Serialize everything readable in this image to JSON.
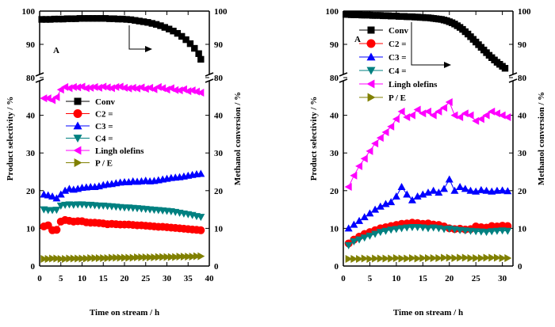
{
  "chart_data": [
    {
      "type": "scatter",
      "panel_label": "A",
      "xlabel": "Time on stream / h",
      "ylabel_left": "Product selectivity / %",
      "ylabel_right": "Methanol conversion / %",
      "xlim": [
        0,
        40
      ],
      "x_ticks": [
        "0",
        "5",
        "10",
        "15",
        "20",
        "25",
        "30",
        "35",
        "40"
      ],
      "y_lower_lim": [
        0,
        50
      ],
      "y_lower_ticks": [
        "0",
        "10",
        "20",
        "30",
        "40"
      ],
      "y_upper_lim": [
        80,
        100
      ],
      "y_upper_ticks": [
        "80",
        "90",
        "100"
      ],
      "axis_break": "between 45 and 80",
      "legend_position": "center-left",
      "conversion_series": {
        "name": "Conv",
        "x": [
          0.5,
          1.5,
          2.5,
          3.5,
          4.5,
          5.5,
          6.5,
          7.5,
          8.5,
          9.5,
          10.5,
          11.5,
          12.5,
          13.5,
          14.5,
          15.5,
          16.5,
          17.5,
          18.5,
          19.5,
          20.5,
          21.5,
          22.5,
          23.5,
          24.5,
          25.5,
          26.5,
          27.5,
          28.5,
          29.5,
          30.5,
          31.5,
          32.5,
          33.5,
          34.5,
          35.5,
          36.5,
          37.5,
          38.0
        ],
        "values": [
          97.5,
          97.5,
          97.5,
          97.6,
          97.6,
          97.6,
          97.7,
          97.7,
          97.7,
          97.8,
          97.8,
          97.8,
          97.8,
          97.8,
          97.8,
          97.8,
          97.7,
          97.7,
          97.6,
          97.6,
          97.5,
          97.4,
          97.2,
          97.0,
          96.8,
          96.6,
          96.3,
          96.0,
          95.6,
          95.1,
          94.6,
          94.0,
          93.3,
          92.4,
          91.4,
          90.2,
          88.8,
          87.2,
          85.5
        ]
      },
      "series": [
        {
          "name": "C2 =",
          "marker": "circle",
          "color": "#ff0000",
          "x": [
            1,
            2,
            3,
            4,
            5,
            6,
            7,
            8,
            9,
            10,
            11,
            12,
            13,
            14,
            15,
            16,
            17,
            18,
            19,
            20,
            21,
            22,
            23,
            24,
            25,
            26,
            27,
            28,
            29,
            30,
            31,
            32,
            33,
            34,
            35,
            36,
            37,
            38
          ],
          "values": [
            10.5,
            10.8,
            9.5,
            9.6,
            11.8,
            12.2,
            12.0,
            11.8,
            11.9,
            11.9,
            11.6,
            11.5,
            11.5,
            11.4,
            11.3,
            11.1,
            11.2,
            11.1,
            11.0,
            11.0,
            11.0,
            10.9,
            10.8,
            10.8,
            10.7,
            10.6,
            10.5,
            10.4,
            10.4,
            10.3,
            10.2,
            10.1,
            10.0,
            9.9,
            9.8,
            9.7,
            9.6,
            9.5
          ]
        },
        {
          "name": "C3 =",
          "marker": "triangle-up",
          "color": "#0000ff",
          "x": [
            1,
            2,
            3,
            4,
            5,
            6,
            7,
            8,
            9,
            10,
            11,
            12,
            13,
            14,
            15,
            16,
            17,
            18,
            19,
            20,
            21,
            22,
            23,
            24,
            25,
            26,
            27,
            28,
            29,
            30,
            31,
            32,
            33,
            34,
            35,
            36,
            37,
            38
          ],
          "values": [
            19.0,
            18.8,
            18.5,
            18.0,
            19.0,
            20.0,
            20.5,
            20.3,
            20.5,
            20.8,
            20.9,
            21.0,
            21.0,
            21.2,
            21.5,
            21.7,
            21.8,
            22.0,
            22.2,
            22.3,
            22.3,
            22.5,
            22.4,
            22.5,
            22.7,
            22.5,
            22.6,
            22.8,
            23.0,
            23.2,
            23.4,
            23.5,
            23.6,
            23.8,
            24.0,
            24.2,
            24.4,
            24.5
          ]
        },
        {
          "name": "C4 =",
          "marker": "triangle-down",
          "color": "#008080",
          "x": [
            1,
            2,
            3,
            4,
            5,
            6,
            7,
            8,
            9,
            10,
            11,
            12,
            13,
            14,
            15,
            16,
            17,
            18,
            19,
            20,
            21,
            22,
            23,
            24,
            25,
            26,
            27,
            28,
            29,
            30,
            31,
            32,
            33,
            34,
            35,
            36,
            37,
            38
          ],
          "values": [
            15.0,
            14.8,
            14.8,
            14.9,
            16.0,
            16.2,
            16.3,
            16.2,
            16.3,
            16.3,
            16.2,
            16.2,
            16.1,
            16.0,
            16.0,
            15.9,
            15.8,
            15.7,
            15.6,
            15.5,
            15.5,
            15.4,
            15.3,
            15.2,
            15.1,
            15.0,
            14.9,
            14.8,
            14.7,
            14.6,
            14.5,
            14.3,
            14.1,
            13.9,
            13.7,
            13.5,
            13.2,
            13.0
          ]
        },
        {
          "name": "Lingh olefins",
          "marker": "triangle-left",
          "color": "#ff00ff",
          "x": [
            1,
            2,
            3,
            4,
            5,
            6,
            7,
            8,
            9,
            10,
            11,
            12,
            13,
            14,
            15,
            16,
            17,
            18,
            19,
            20,
            21,
            22,
            23,
            24,
            25,
            26,
            27,
            28,
            29,
            30,
            31,
            32,
            33,
            34,
            35,
            36,
            37,
            38
          ],
          "values": [
            44.5,
            44.5,
            44.0,
            44.8,
            46.8,
            47.5,
            47.2,
            47.5,
            47.4,
            47.6,
            47.2,
            47.3,
            47.5,
            47.3,
            47.6,
            47.4,
            47.2,
            47.5,
            47.6,
            47.3,
            47.1,
            47.3,
            47.1,
            47.4,
            47.0,
            47.3,
            46.9,
            47.5,
            47.2,
            46.8,
            47.2,
            46.7,
            46.6,
            46.9,
            46.4,
            46.6,
            46.3,
            46.0
          ]
        },
        {
          "name": "P / E",
          "marker": "triangle-right",
          "color": "#808000",
          "x": [
            1,
            2,
            3,
            4,
            5,
            6,
            7,
            8,
            9,
            10,
            11,
            12,
            13,
            14,
            15,
            16,
            17,
            18,
            19,
            20,
            21,
            22,
            23,
            24,
            25,
            26,
            27,
            28,
            29,
            30,
            31,
            32,
            33,
            34,
            35,
            36,
            37,
            38
          ],
          "values": [
            1.9,
            1.9,
            2.0,
            2.0,
            1.9,
            1.9,
            2.0,
            2.0,
            2.0,
            2.0,
            2.0,
            2.1,
            2.1,
            2.1,
            2.1,
            2.1,
            2.2,
            2.2,
            2.2,
            2.2,
            2.2,
            2.2,
            2.3,
            2.3,
            2.3,
            2.3,
            2.3,
            2.4,
            2.4,
            2.4,
            2.4,
            2.4,
            2.5,
            2.5,
            2.5,
            2.5,
            2.6,
            2.6
          ]
        }
      ]
    },
    {
      "type": "scatter",
      "panel_label": "A",
      "xlabel": "Time on stream / h",
      "ylabel_left": "Product selectivity / %",
      "ylabel_right": "Methanol conversion / %",
      "xlim": [
        0,
        32
      ],
      "x_ticks": [
        "0",
        "5",
        "10",
        "15",
        "20",
        "25",
        "30"
      ],
      "y_lower_lim": [
        0,
        50
      ],
      "y_lower_ticks": [
        "0",
        "10",
        "20",
        "30",
        "40"
      ],
      "y_upper_lim": [
        80,
        100
      ],
      "y_upper_ticks": [
        "80",
        "90",
        "100"
      ],
      "axis_break": "between 45 and 80",
      "legend_position": "top-left",
      "conversion_series": {
        "name": "Conv",
        "x": [
          0.5,
          1,
          1.5,
          2,
          2.5,
          3,
          3.5,
          4,
          4.5,
          5,
          5.5,
          6,
          6.5,
          7,
          7.5,
          8,
          8.5,
          9,
          9.5,
          10,
          10.5,
          11,
          11.5,
          12,
          12.5,
          13,
          13.5,
          14,
          14.5,
          15,
          15.5,
          16,
          16.5,
          17,
          17.5,
          18,
          18.5,
          19,
          19.5,
          20,
          20.5,
          21,
          21.5,
          22,
          22.5,
          23,
          23.5,
          24,
          24.5,
          25,
          25.5,
          26,
          26.5,
          27,
          27.5,
          28,
          28.5,
          29,
          29.5,
          30,
          30.5
        ],
        "values": [
          99.0,
          99.0,
          98.9,
          98.9,
          98.9,
          98.9,
          98.8,
          98.8,
          98.8,
          98.8,
          98.7,
          98.7,
          98.7,
          98.7,
          98.6,
          98.6,
          98.6,
          98.5,
          98.5,
          98.5,
          98.4,
          98.4,
          98.4,
          98.3,
          98.3,
          98.3,
          98.2,
          98.2,
          98.1,
          98.1,
          98.0,
          98.0,
          97.9,
          97.8,
          97.7,
          97.6,
          97.5,
          97.3,
          97.1,
          96.8,
          96.5,
          96.1,
          95.6,
          95.1,
          94.5,
          93.8,
          93.1,
          92.3,
          91.5,
          90.7,
          89.9,
          89.1,
          88.3,
          87.5,
          86.7,
          86.0,
          85.3,
          84.6,
          84.0,
          83.4,
          82.8
        ]
      },
      "series": [
        {
          "name": "C2 =",
          "marker": "circle",
          "color": "#ff0000",
          "x": [
            1,
            2,
            3,
            4,
            5,
            6,
            7,
            8,
            9,
            10,
            11,
            12,
            13,
            14,
            15,
            16,
            17,
            18,
            19,
            20,
            21,
            22,
            23,
            24,
            25,
            26,
            27,
            28,
            29,
            30,
            31
          ],
          "values": [
            6.0,
            7.0,
            7.8,
            8.5,
            9.0,
            9.5,
            10.0,
            10.3,
            10.6,
            10.9,
            11.2,
            11.3,
            11.5,
            11.4,
            11.2,
            11.3,
            11.0,
            10.9,
            10.5,
            10.0,
            9.8,
            9.9,
            9.7,
            9.8,
            10.5,
            10.3,
            10.2,
            10.6,
            10.5,
            10.7,
            10.6
          ]
        },
        {
          "name": "C3 =",
          "marker": "triangle-up",
          "color": "#0000ff",
          "x": [
            1,
            2,
            3,
            4,
            5,
            6,
            7,
            8,
            9,
            10,
            11,
            12,
            13,
            14,
            15,
            16,
            17,
            18,
            19,
            20,
            21,
            22,
            23,
            24,
            25,
            26,
            27,
            28,
            29,
            30,
            31
          ],
          "values": [
            10.0,
            11.0,
            12.0,
            13.0,
            14.0,
            15.0,
            15.8,
            16.5,
            17.0,
            18.5,
            21.0,
            19.0,
            17.5,
            18.5,
            19.0,
            19.5,
            20.0,
            19.5,
            20.5,
            23.0,
            20.0,
            21.0,
            20.5,
            20.0,
            19.8,
            20.2,
            20.0,
            19.8,
            20.0,
            20.1,
            19.9
          ]
        },
        {
          "name": "C4 =",
          "marker": "triangle-down",
          "color": "#008080",
          "x": [
            1,
            2,
            3,
            4,
            5,
            6,
            7,
            8,
            9,
            10,
            11,
            12,
            13,
            14,
            15,
            16,
            17,
            18,
            19,
            20,
            21,
            22,
            23,
            24,
            25,
            26,
            27,
            28,
            29,
            30,
            31
          ],
          "values": [
            5.5,
            6.5,
            7.0,
            7.5,
            8.0,
            8.5,
            9.0,
            9.3,
            9.6,
            9.8,
            10.0,
            10.2,
            10.3,
            10.3,
            10.2,
            10.0,
            10.2,
            10.0,
            9.8,
            9.9,
            9.7,
            9.5,
            9.4,
            9.3,
            9.2,
            9.1,
            9.0,
            9.2,
            9.3,
            9.4,
            9.3
          ]
        },
        {
          "name": "Lingh olefins",
          "marker": "triangle-left",
          "color": "#ff00ff",
          "x": [
            1,
            2,
            3,
            4,
            5,
            6,
            7,
            8,
            9,
            10,
            11,
            12,
            13,
            14,
            15,
            16,
            17,
            18,
            19,
            20,
            21,
            22,
            23,
            24,
            25,
            26,
            27,
            28,
            29,
            30,
            31
          ],
          "values": [
            21.0,
            24.0,
            26.5,
            28.5,
            30.5,
            32.5,
            34.0,
            35.5,
            37.0,
            39.0,
            41.0,
            39.5,
            40.0,
            41.5,
            40.5,
            41.0,
            40.0,
            41.0,
            42.0,
            43.5,
            40.0,
            39.5,
            40.5,
            40.0,
            38.5,
            39.0,
            40.0,
            41.0,
            40.5,
            40.0,
            39.5
          ]
        },
        {
          "name": "P / E",
          "marker": "triangle-right",
          "color": "#808000",
          "x": [
            1,
            2,
            3,
            4,
            5,
            6,
            7,
            8,
            9,
            10,
            11,
            12,
            13,
            14,
            15,
            16,
            17,
            18,
            19,
            20,
            21,
            22,
            23,
            24,
            25,
            26,
            27,
            28,
            29,
            30,
            31
          ],
          "values": [
            1.9,
            1.9,
            1.9,
            2.0,
            1.9,
            2.0,
            2.0,
            2.0,
            2.0,
            2.1,
            2.0,
            2.0,
            2.1,
            2.0,
            2.1,
            2.1,
            2.1,
            2.1,
            2.2,
            2.2,
            2.1,
            2.2,
            2.2,
            2.1,
            2.1,
            2.1,
            2.2,
            2.2,
            2.2,
            2.1,
            2.1
          ]
        }
      ]
    }
  ]
}
